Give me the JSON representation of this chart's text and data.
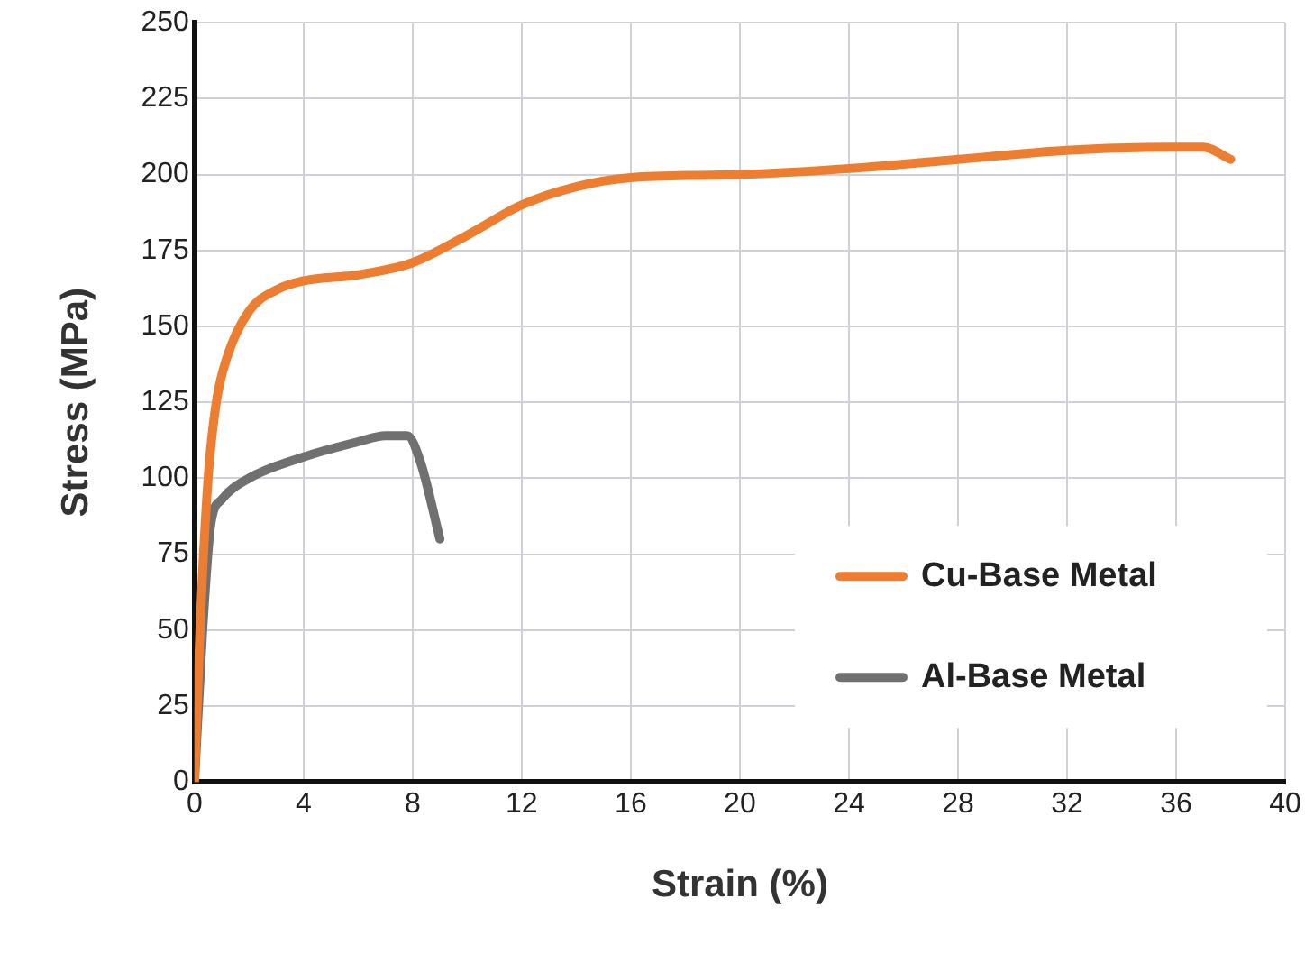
{
  "chart_data": {
    "type": "line",
    "xlabel": "Strain (%)",
    "ylabel": "Stress (MPa)",
    "xlim": [
      0,
      40
    ],
    "xticks": [
      0,
      4,
      8,
      12,
      16,
      20,
      24,
      28,
      32,
      36,
      40
    ],
    "ylim": [
      0,
      250
    ],
    "yticks": [
      0,
      25,
      50,
      75,
      100,
      125,
      150,
      175,
      200,
      225,
      250
    ],
    "grid": true,
    "legend": "bottom right",
    "marker": "none",
    "line_style": "solid",
    "series": [
      {
        "name": "Cu-Base Metal",
        "color": "#ed7d31",
        "x": [
          0,
          0.2,
          0.5,
          0.8,
          1.2,
          2,
          3,
          4,
          6,
          8,
          10,
          12,
          14,
          16,
          20,
          24,
          28,
          32,
          36,
          37,
          38
        ],
        "values": [
          0,
          50,
          100,
          125,
          140,
          155,
          162,
          165,
          167,
          171,
          180,
          190,
          196,
          199,
          200,
          202,
          205,
          208,
          209,
          209,
          205
        ]
      },
      {
        "name": "Al-Base Metal",
        "color": "#707070",
        "x": [
          0,
          0.3,
          0.6,
          1,
          2,
          4,
          6,
          7,
          7.8,
          8.3,
          9
        ],
        "values": [
          0,
          50,
          85,
          93,
          100,
          107,
          112,
          114,
          114,
          105,
          80
        ]
      }
    ]
  }
}
